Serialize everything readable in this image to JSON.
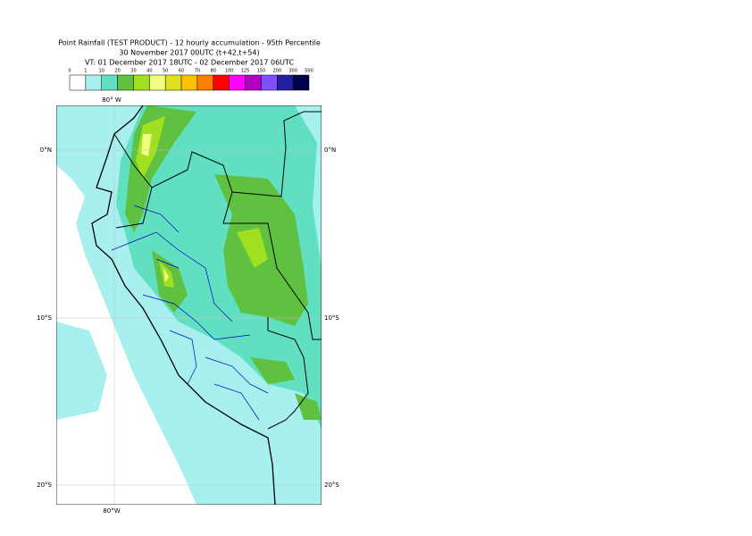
{
  "header": {
    "title": [
      "Point Rainfall (TEST PRODUCT) - 12 hourly accumulation - 95th Percentile",
      "30 November 2017 00UTC (t+42,t+54)",
      "VT: 01 December 2017 18UTC - 02 December 2017 06UTC"
    ]
  },
  "legend": {
    "labels": [
      "0",
      "1",
      "10",
      "20",
      "30",
      "40",
      "50",
      "60",
      "70",
      "80",
      "100",
      "125",
      "150",
      "200",
      "300",
      "500"
    ],
    "colors": [
      "#ffffff",
      "#a8f0f0",
      "#60e0c0",
      "#60c040",
      "#a0e020",
      "#f0ff80",
      "#e0e020",
      "#ffc000",
      "#ff8000",
      "#ff0000",
      "#ff00ff",
      "#b000c0",
      "#8050ff",
      "#2020a0",
      "#000050"
    ]
  },
  "map": {
    "lon_top": "80° W",
    "lon_bottom": "80°W",
    "lat": [
      "0°N",
      "10°S",
      "20°S"
    ]
  }
}
